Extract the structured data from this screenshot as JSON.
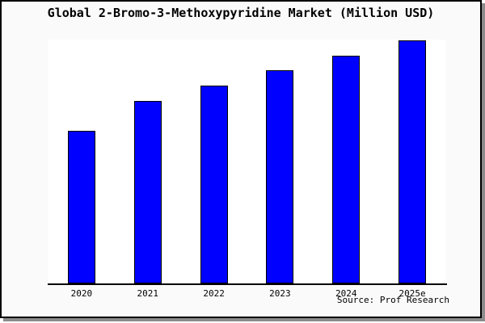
{
  "chart_data": {
    "type": "bar",
    "title": "Global 2-Bromo-3-Methoxypyridine Market (Million USD)",
    "categories": [
      "2020",
      "2021",
      "2022",
      "2023",
      "2024",
      "2025e"
    ],
    "values": [
      62.6,
      74.8,
      81.1,
      87.4,
      93.4,
      99.7
    ],
    "ylim": [
      0,
      100
    ],
    "xlabel": "",
    "ylabel": "",
    "y_axis_labels_visible": false,
    "grid": false,
    "legend": false,
    "bar_color": "#0000ff",
    "bar_border_color": "#000000",
    "source_label": "Source: Prof Research"
  },
  "colors": {
    "frame_background": "#fafafa",
    "plot_background": "#ffffff",
    "frame_border": "#000000",
    "shadow": "#8c8c8c",
    "text": "#000000"
  }
}
